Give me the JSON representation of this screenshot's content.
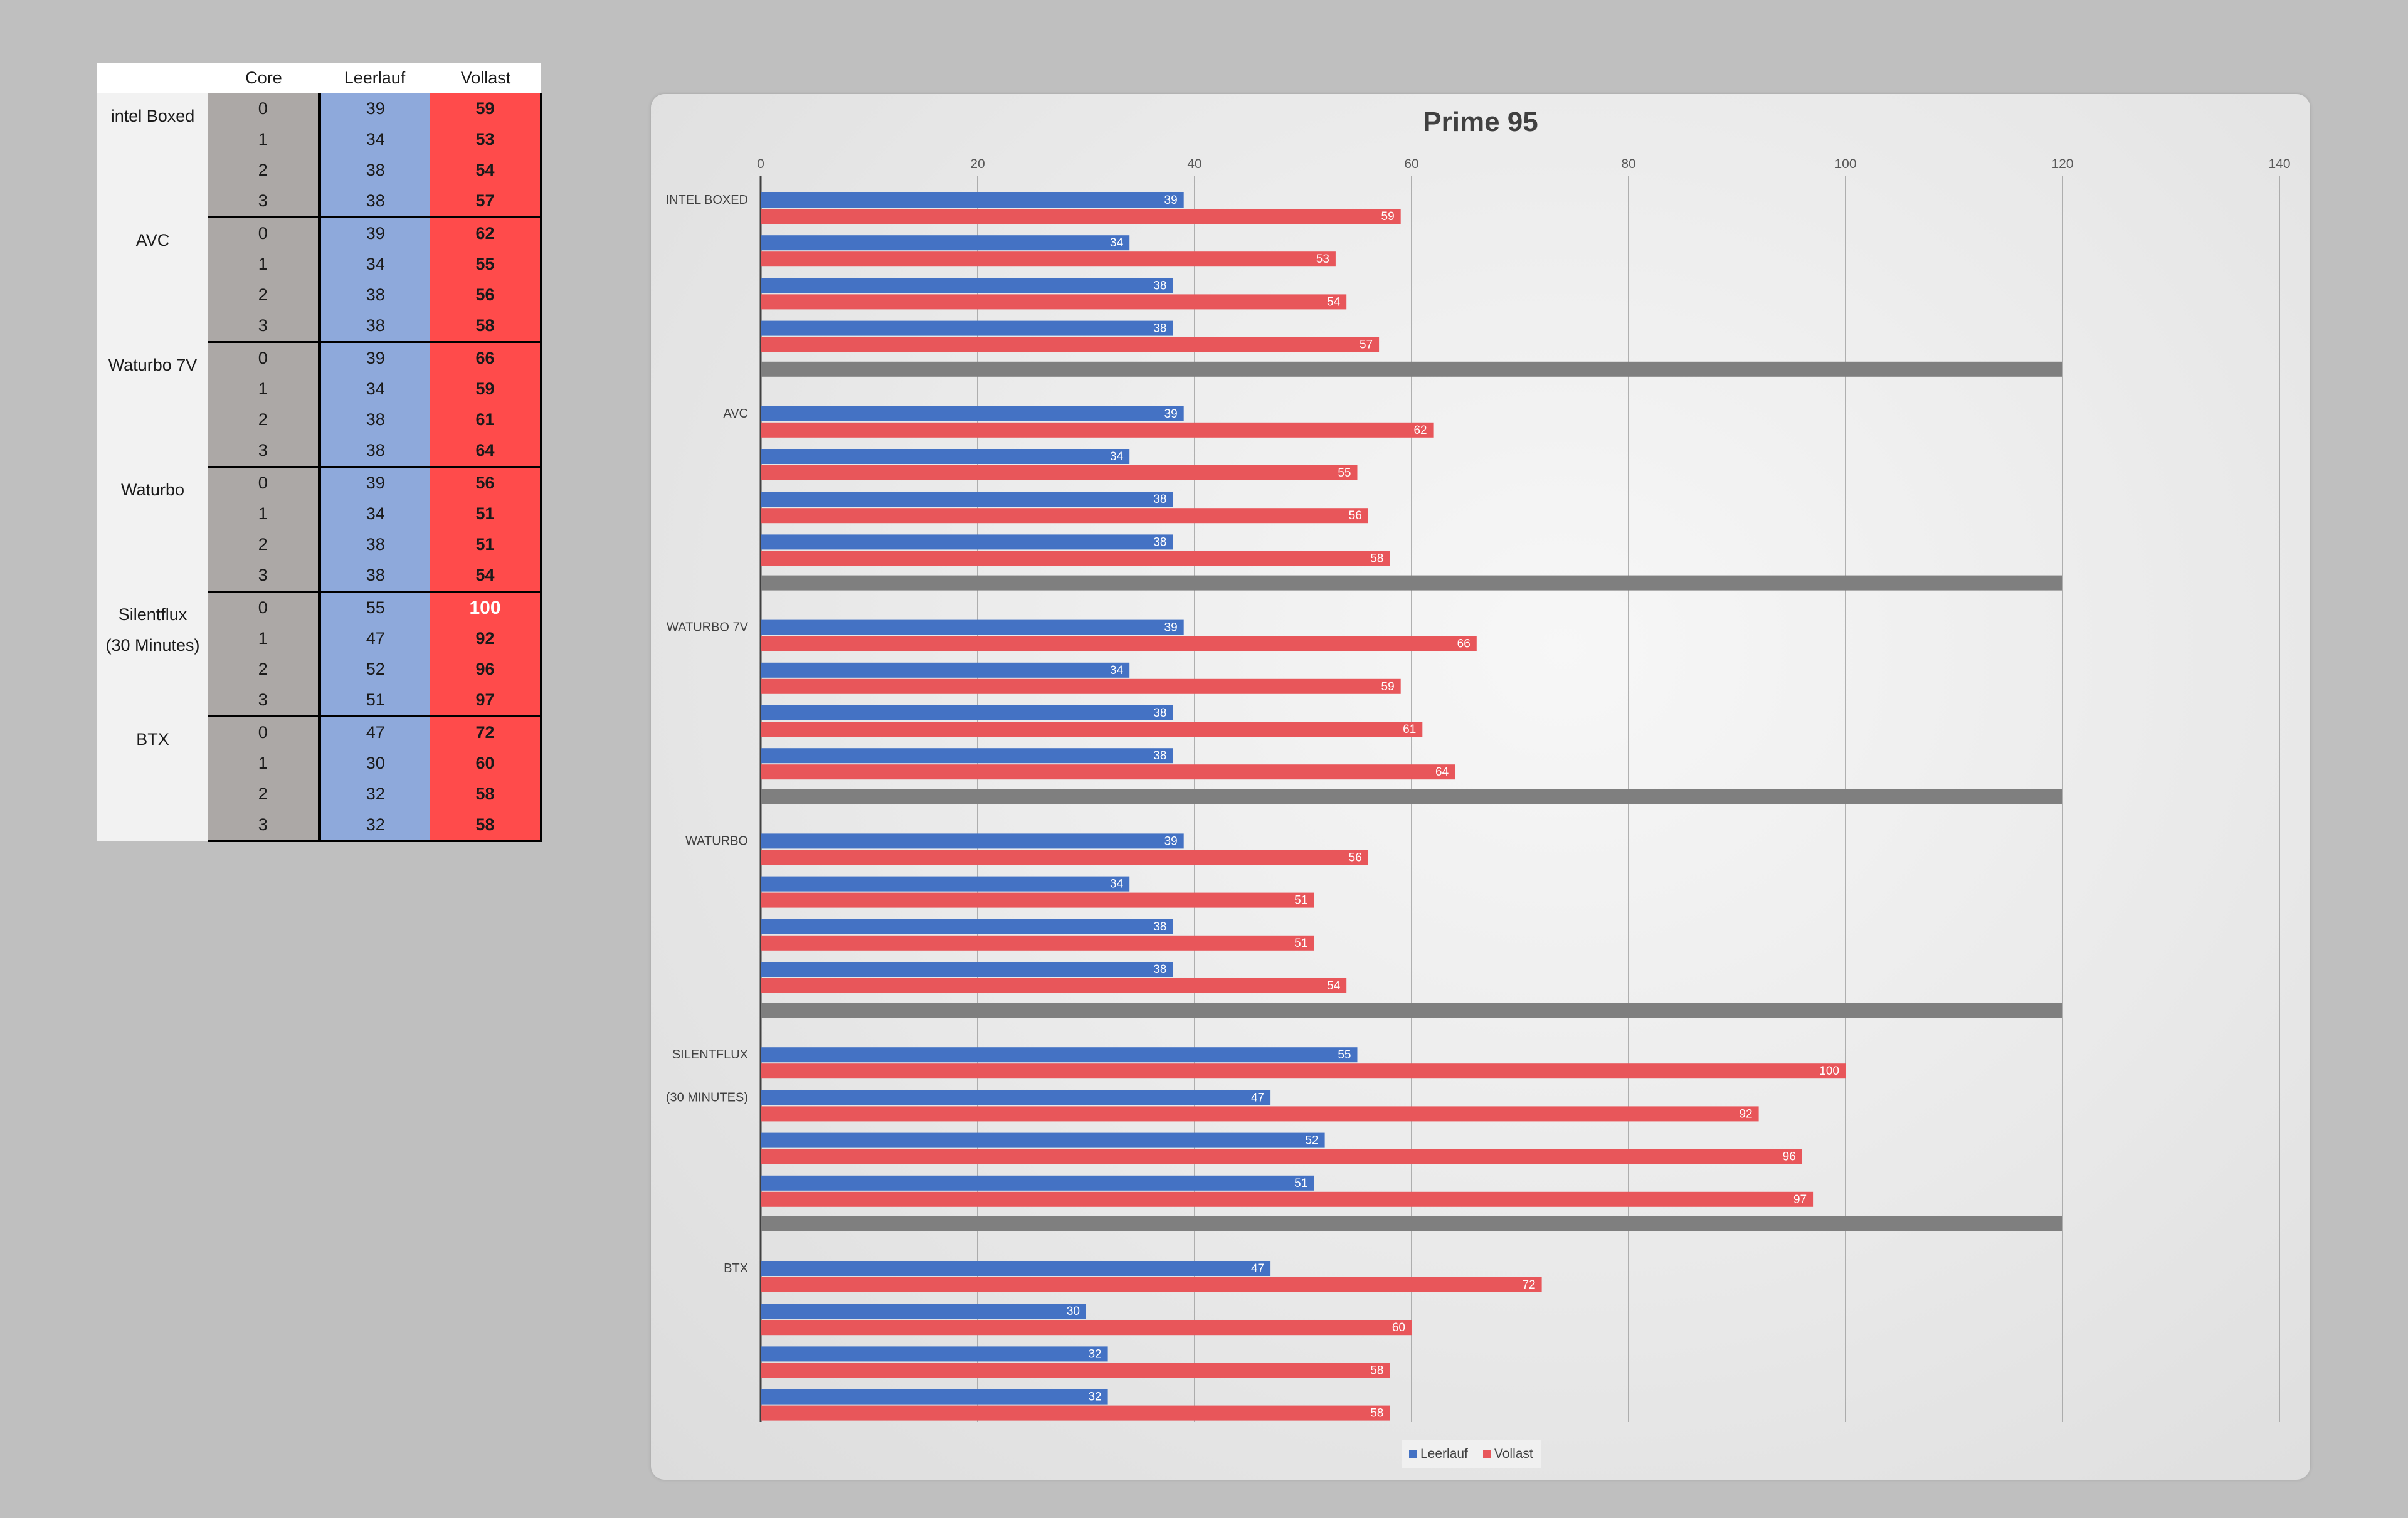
{
  "table": {
    "headers": [
      "",
      "Core",
      "Leerlauf",
      "Vollast"
    ],
    "groups": [
      {
        "name": [
          "intel Boxed"
        ],
        "rows": [
          {
            "core": "0",
            "idle": "39",
            "load": "59"
          },
          {
            "core": "1",
            "idle": "34",
            "load": "53"
          },
          {
            "core": "2",
            "idle": "38",
            "load": "54"
          },
          {
            "core": "3",
            "idle": "38",
            "load": "57"
          }
        ]
      },
      {
        "name": [
          "AVC"
        ],
        "rows": [
          {
            "core": "0",
            "idle": "39",
            "load": "62"
          },
          {
            "core": "1",
            "idle": "34",
            "load": "55"
          },
          {
            "core": "2",
            "idle": "38",
            "load": "56"
          },
          {
            "core": "3",
            "idle": "38",
            "load": "58"
          }
        ]
      },
      {
        "name": [
          "Waturbo 7V"
        ],
        "rows": [
          {
            "core": "0",
            "idle": "39",
            "load": "66"
          },
          {
            "core": "1",
            "idle": "34",
            "load": "59"
          },
          {
            "core": "2",
            "idle": "38",
            "load": "61"
          },
          {
            "core": "3",
            "idle": "38",
            "load": "64"
          }
        ]
      },
      {
        "name": [
          "Waturbo"
        ],
        "rows": [
          {
            "core": "0",
            "idle": "39",
            "load": "56"
          },
          {
            "core": "1",
            "idle": "34",
            "load": "51"
          },
          {
            "core": "2",
            "idle": "38",
            "load": "51"
          },
          {
            "core": "3",
            "idle": "38",
            "load": "54"
          }
        ]
      },
      {
        "name": [
          "Silentflux",
          "(30 Minutes)"
        ],
        "rows": [
          {
            "core": "0",
            "idle": "55",
            "load": "100"
          },
          {
            "core": "1",
            "idle": "47",
            "load": "92"
          },
          {
            "core": "2",
            "idle": "52",
            "load": "96"
          },
          {
            "core": "3",
            "idle": "51",
            "load": "97"
          }
        ]
      },
      {
        "name": [
          "BTX"
        ],
        "rows": [
          {
            "core": "0",
            "idle": "47",
            "load": "72"
          },
          {
            "core": "1",
            "idle": "30",
            "load": "60"
          },
          {
            "core": "2",
            "idle": "32",
            "load": "58"
          },
          {
            "core": "3",
            "idle": "32",
            "load": "58"
          }
        ]
      }
    ]
  },
  "chart_data": {
    "type": "bar",
    "orientation": "horizontal",
    "title": "Prime 95",
    "xlim": [
      0,
      140
    ],
    "xticks": [
      "0",
      "20",
      "40",
      "60",
      "80",
      "100",
      "120",
      "140"
    ],
    "grid": true,
    "legend": "bottom",
    "groups": [
      {
        "labels": [
          "INTEL BOXED"
        ]
      },
      {
        "labels": [
          "AVC"
        ]
      },
      {
        "labels": [
          "WATURBO 7V"
        ]
      },
      {
        "labels": [
          "WATURBO"
        ]
      },
      {
        "labels": [
          "SILENTFLUX",
          "(30 MINUTES)"
        ]
      },
      {
        "labels": [
          "BTX"
        ]
      }
    ],
    "series": [
      {
        "name": "Leerlauf",
        "color": "#4472c4",
        "values": [
          [
            39,
            34,
            38,
            38
          ],
          [
            39,
            34,
            38,
            38
          ],
          [
            39,
            34,
            38,
            38
          ],
          [
            39,
            34,
            38,
            38
          ],
          [
            55,
            47,
            52,
            51
          ],
          [
            47,
            30,
            32,
            32
          ]
        ]
      },
      {
        "name": "Vollast",
        "color": "#e8565a",
        "values": [
          [
            59,
            53,
            54,
            57
          ],
          [
            62,
            55,
            56,
            58
          ],
          [
            66,
            59,
            61,
            64
          ],
          [
            56,
            51,
            51,
            54
          ],
          [
            100,
            92,
            96,
            97
          ],
          [
            72,
            60,
            58,
            58
          ]
        ]
      }
    ],
    "separator": {
      "value": 120,
      "color": "#7f7f7f"
    }
  }
}
